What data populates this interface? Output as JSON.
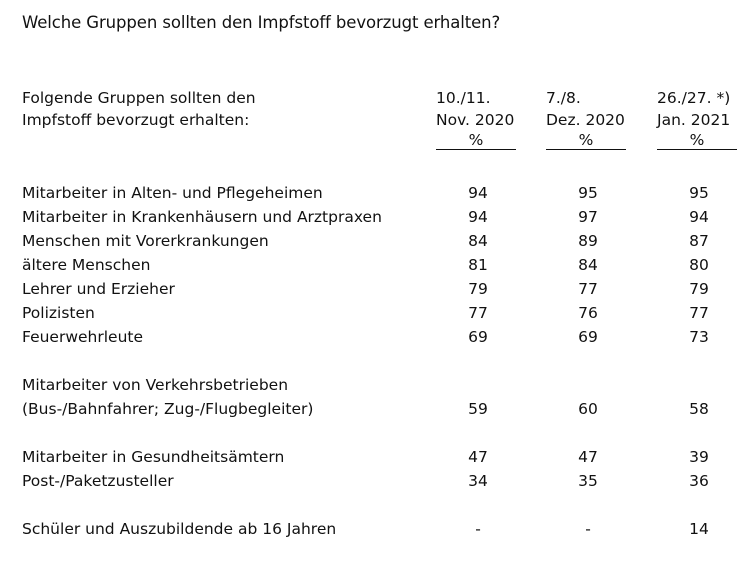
{
  "chart_data": {
    "type": "table",
    "title": "Welche Gruppen sollten den Impfstoff bevorzugt erhalten?",
    "row_header": [
      "Folgende Gruppen sollten den",
      "Impfstoff bevorzugt erhalten:"
    ],
    "columns": [
      {
        "line1": "10./11.",
        "line2": "Nov. 2020",
        "unit": "%"
      },
      {
        "line1": "7./8.",
        "line2": "Dez. 2020",
        "unit": "%"
      },
      {
        "line1": "26./27.  *)",
        "line2": "Jan. 2021",
        "unit": "%"
      }
    ],
    "rows": [
      {
        "label": [
          "Mitarbeiter in Alten- und Pflegeheimen"
        ],
        "values": [
          "94",
          "95",
          "95"
        ]
      },
      {
        "label": [
          "Mitarbeiter in Krankenhäusern und Arztpraxen"
        ],
        "values": [
          "94",
          "97",
          "94"
        ]
      },
      {
        "label": [
          "Menschen mit Vorerkrankungen"
        ],
        "values": [
          "84",
          "89",
          "87"
        ]
      },
      {
        "label": [
          "ältere Menschen"
        ],
        "values": [
          "81",
          "84",
          "80"
        ]
      },
      {
        "label": [
          "Lehrer und Erzieher"
        ],
        "values": [
          "79",
          "77",
          "79"
        ]
      },
      {
        "label": [
          "Polizisten"
        ],
        "values": [
          "77",
          "76",
          "77"
        ]
      },
      {
        "label": [
          "Feuerwehrleute"
        ],
        "values": [
          "69",
          "69",
          "73"
        ]
      },
      {
        "label": [
          "Mitarbeiter von Verkehrsbetrieben",
          "(Bus-/Bahnfahrer; Zug-/Flugbegleiter)"
        ],
        "values": [
          "59",
          "60",
          "58"
        ]
      },
      {
        "label": [
          "Mitarbeiter in Gesundheitsämtern"
        ],
        "values": [
          "47",
          "47",
          "39"
        ]
      },
      {
        "label": [
          "Post-/Paketzusteller"
        ],
        "values": [
          "34",
          "35",
          "36"
        ]
      },
      {
        "label": [
          "Schüler und Auszubildende ab 16 Jahren"
        ],
        "values": [
          "-",
          "-",
          "14"
        ]
      }
    ]
  }
}
